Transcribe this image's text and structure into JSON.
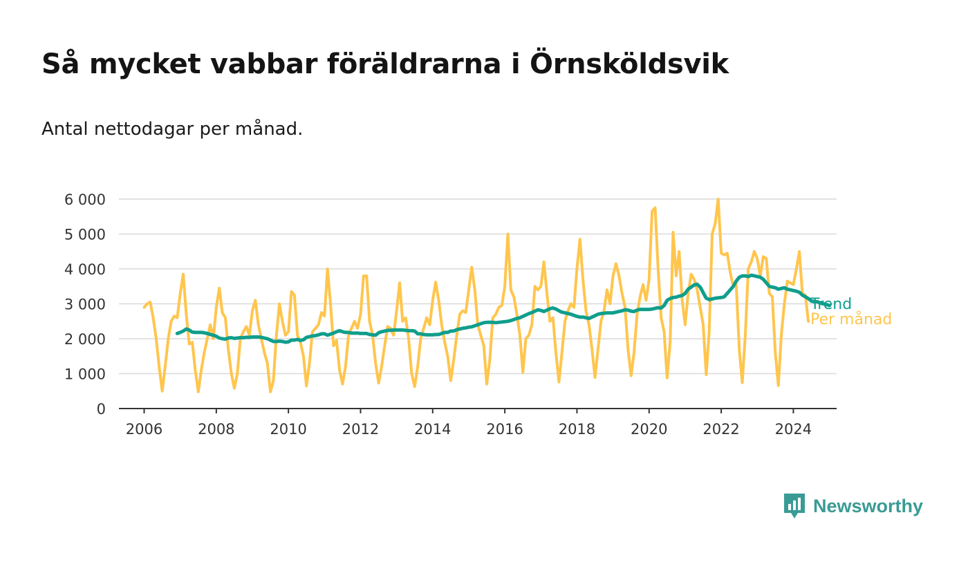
{
  "title": "Så mycket vabbar föräldrarna i Örnsköldsvik",
  "subtitle": "Antal nettodagar per månad.",
  "brand": "Newsworthy",
  "colors": {
    "monthly": "#ffc54d",
    "trend": "#109e8c",
    "grid": "#d9d9d9",
    "axis": "#333333",
    "brand": "#3a9b95"
  },
  "chart_data": {
    "type": "line",
    "title": "Så mycket vabbar föräldrarna i Örnsköldsvik",
    "subtitle": "Antal nettodagar per månad.",
    "xlabel": "",
    "ylabel": "",
    "xlim": [
      2005.3,
      2025.2
    ],
    "ylim": [
      0,
      6000
    ],
    "grid": true,
    "legend": "right-end labels",
    "y_ticks": [
      0,
      1000,
      2000,
      3000,
      4000,
      5000,
      6000
    ],
    "y_tick_labels": [
      "0",
      "1 000",
      "2 000",
      "3 000",
      "4 000",
      "5 000",
      "6 000"
    ],
    "x_ticks": [
      2006,
      2008,
      2010,
      2012,
      2014,
      2016,
      2018,
      2020,
      2022,
      2024
    ],
    "x_tick_labels": [
      "2006",
      "2008",
      "2010",
      "2012",
      "2014",
      "2016",
      "2018",
      "2020",
      "2022",
      "2024"
    ],
    "series": [
      {
        "name": "Per månad",
        "color": "#ffc54d",
        "x_start": 2006.0,
        "step_months": 1,
        "values": [
          2900,
          3000,
          3050,
          2600,
          2000,
          1200,
          500,
          1200,
          2000,
          2500,
          2650,
          2600,
          3300,
          3850,
          2700,
          1850,
          1900,
          1100,
          480,
          1100,
          1600,
          2000,
          2400,
          2000,
          2900,
          3450,
          2750,
          2600,
          1700,
          1000,
          580,
          1000,
          2000,
          2200,
          2350,
          2100,
          2800,
          3100,
          2400,
          2000,
          1600,
          1300,
          480,
          800,
          2100,
          3000,
          2500,
          2100,
          2200,
          3350,
          3250,
          2100,
          1900,
          1500,
          650,
          1300,
          2200,
          2300,
          2400,
          2750,
          2650,
          4000,
          3000,
          1800,
          1950,
          1100,
          700,
          1200,
          2100,
          2300,
          2500,
          2300,
          2700,
          3800,
          3800,
          2500,
          2100,
          1300,
          730,
          1200,
          1800,
          2350,
          2300,
          2100,
          2800,
          3600,
          2500,
          2600,
          2000,
          1000,
          630,
          1200,
          2000,
          2300,
          2600,
          2400,
          3100,
          3620,
          3100,
          2400,
          1900,
          1500,
          800,
          1400,
          2100,
          2700,
          2800,
          2750,
          3400,
          4050,
          3400,
          2400,
          2100,
          1800,
          700,
          1400,
          2600,
          2700,
          2900,
          2950,
          3500,
          5000,
          3400,
          3200,
          2700,
          2100,
          1040,
          2000,
          2100,
          2400,
          3500,
          3400,
          3500,
          4200,
          3300,
          2500,
          2600,
          1600,
          760,
          1600,
          2500,
          2800,
          3000,
          2900,
          4000,
          4850,
          3700,
          2800,
          2400,
          1700,
          890,
          1700,
          2500,
          2800,
          3400,
          3000,
          3800,
          4150,
          3800,
          3300,
          2900,
          1700,
          940,
          1600,
          2700,
          3200,
          3550,
          3100,
          3700,
          5650,
          5750,
          4000,
          2600,
          2200,
          880,
          1900,
          5050,
          3800,
          4500,
          3100,
          2400,
          3300,
          3850,
          3700,
          3400,
          2900,
          2400,
          970,
          2200,
          5000,
          5300,
          6000,
          4450,
          4400,
          4450,
          3900,
          3500,
          3550,
          1700,
          740,
          2100,
          4000,
          4200,
          4500,
          4300,
          3800,
          4350,
          4300,
          3300,
          3200,
          1600,
          660,
          2100,
          3000,
          3650,
          3600,
          3550,
          4000,
          4500,
          3300,
          3250,
          2500
        ]
      },
      {
        "name": "Trend",
        "color": "#109e8c",
        "x_start": 2006.917,
        "step_months": 1,
        "values": [
          2150,
          2180,
          2220,
          2280,
          2250,
          2190,
          2180,
          2180,
          2180,
          2170,
          2150,
          2120,
          2100,
          2070,
          2020,
          2000,
          1990,
          2020,
          2030,
          2010,
          2020,
          2030,
          2030,
          2040,
          2040,
          2050,
          2050,
          2050,
          2040,
          2020,
          2000,
          1960,
          1920,
          1920,
          1930,
          1920,
          1900,
          1910,
          1960,
          1960,
          1980,
          1950,
          1970,
          2040,
          2060,
          2080,
          2090,
          2110,
          2140,
          2140,
          2100,
          2130,
          2160,
          2200,
          2230,
          2200,
          2180,
          2180,
          2160,
          2160,
          2160,
          2150,
          2150,
          2150,
          2120,
          2110,
          2100,
          2170,
          2200,
          2220,
          2240,
          2240,
          2250,
          2250,
          2250,
          2250,
          2240,
          2230,
          2230,
          2220,
          2140,
          2140,
          2120,
          2110,
          2110,
          2110,
          2120,
          2120,
          2150,
          2180,
          2180,
          2220,
          2220,
          2260,
          2280,
          2300,
          2310,
          2330,
          2340,
          2370,
          2400,
          2430,
          2460,
          2470,
          2470,
          2470,
          2460,
          2470,
          2480,
          2490,
          2500,
          2520,
          2550,
          2580,
          2600,
          2640,
          2680,
          2720,
          2750,
          2790,
          2830,
          2810,
          2780,
          2820,
          2860,
          2880,
          2850,
          2800,
          2760,
          2740,
          2720,
          2700,
          2670,
          2640,
          2620,
          2620,
          2600,
          2580,
          2620,
          2660,
          2700,
          2720,
          2730,
          2740,
          2740,
          2740,
          2760,
          2780,
          2800,
          2830,
          2820,
          2790,
          2780,
          2820,
          2840,
          2840,
          2840,
          2840,
          2850,
          2870,
          2890,
          2880,
          2950,
          3100,
          3150,
          3180,
          3190,
          3220,
          3240,
          3300,
          3420,
          3480,
          3540,
          3560,
          3480,
          3320,
          3160,
          3120,
          3140,
          3160,
          3170,
          3180,
          3200,
          3300,
          3400,
          3500,
          3650,
          3760,
          3800,
          3800,
          3780,
          3820,
          3800,
          3780,
          3760,
          3700,
          3600,
          3500,
          3480,
          3460,
          3420,
          3440,
          3460,
          3420,
          3400,
          3380,
          3360,
          3330,
          3250,
          3200,
          3150,
          3080,
          3060,
          3060,
          3020,
          3000,
          2980,
          2950
        ]
      }
    ]
  }
}
